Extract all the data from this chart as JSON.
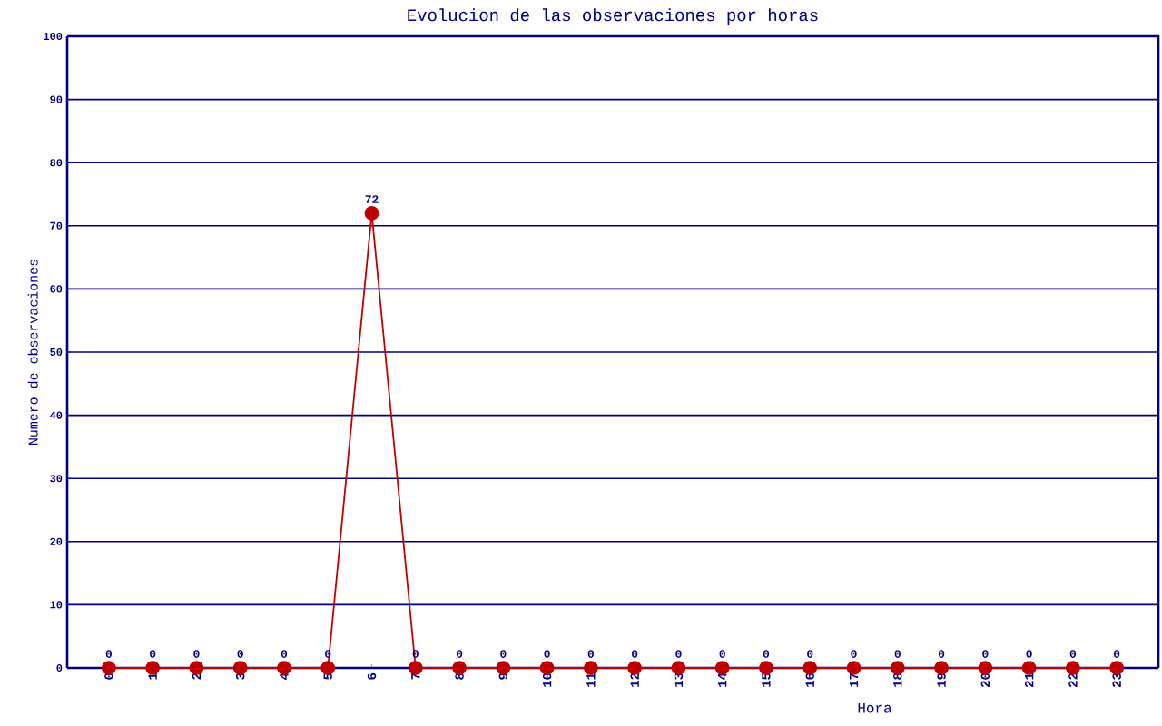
{
  "chart_data": {
    "type": "line",
    "title": "Evolucion de las observaciones por horas",
    "xlabel": "Hora",
    "ylabel": "Numero de observaciones",
    "categories": [
      "0",
      "1",
      "2",
      "3",
      "4",
      "5",
      "6",
      "7",
      "8",
      "9",
      "10",
      "11",
      "12",
      "13",
      "14",
      "15",
      "16",
      "17",
      "18",
      "19",
      "20",
      "21",
      "22",
      "23"
    ],
    "series": [
      {
        "color": "#c00000",
        "values": [
          0,
          0,
          0,
          0,
          0,
          0,
          72,
          0,
          0,
          0,
          0,
          0,
          0,
          0,
          0,
          0,
          0,
          0,
          0,
          0,
          0,
          0,
          0,
          0
        ]
      }
    ],
    "ylim": [
      0,
      100
    ],
    "yticks": [
      0,
      10,
      20,
      30,
      40,
      50,
      60,
      70,
      80,
      90,
      100
    ],
    "grid": "y",
    "marker": "circle",
    "line_style": "solid",
    "data_labels": true
  }
}
